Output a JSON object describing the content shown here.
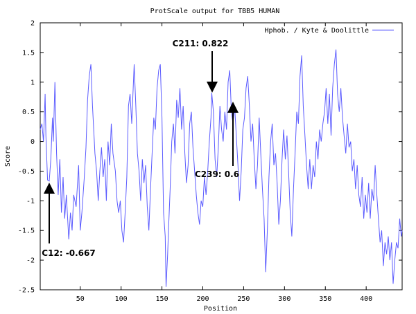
{
  "chart_data": {
    "type": "line",
    "title": "ProtScale output for TBB5 HUMAN",
    "xlabel": "Position",
    "ylabel": "Score",
    "xlim": [
      1,
      444
    ],
    "ylim": [
      -2.5,
      2
    ],
    "xticks": [
      50,
      100,
      150,
      200,
      250,
      300,
      350,
      400
    ],
    "yticks": [
      -2.5,
      -2,
      -1.5,
      -1,
      -0.5,
      0,
      0.5,
      1,
      1.5,
      2
    ],
    "ytick_labels": [
      "-2.5",
      "-2",
      "-1.5",
      "-1",
      "-0.5",
      "0",
      "0.5",
      "1",
      "1.5",
      "2"
    ],
    "grid": false,
    "legend_position": "top-right",
    "series": [
      {
        "name": "Hphob. / Kyte & Doolittle",
        "color": "#5b5bff",
        "anchors": [
          [
            1,
            0.2
          ],
          [
            3,
            0.3
          ],
          [
            5,
            0.0
          ],
          [
            7,
            0.8
          ],
          [
            8,
            0.1
          ],
          [
            10,
            -0.65
          ],
          [
            12,
            -0.667
          ],
          [
            14,
            -0.3
          ],
          [
            16,
            0.4
          ],
          [
            17,
            0.0
          ],
          [
            19,
            1.0
          ],
          [
            21,
            -0.2
          ],
          [
            23,
            -0.9
          ],
          [
            25,
            -0.3
          ],
          [
            27,
            -1.2
          ],
          [
            29,
            -0.6
          ],
          [
            31,
            -1.3
          ],
          [
            33,
            -0.9
          ],
          [
            36,
            -1.65
          ],
          [
            38,
            -1.2
          ],
          [
            40,
            -1.5
          ],
          [
            42,
            -0.9
          ],
          [
            45,
            -1.1
          ],
          [
            48,
            -0.4
          ],
          [
            50,
            -1.5
          ],
          [
            52,
            -1.2
          ],
          [
            55,
            -0.6
          ],
          [
            57,
            -0.1
          ],
          [
            59,
            0.7
          ],
          [
            61,
            1.1
          ],
          [
            63,
            1.3
          ],
          [
            65,
            0.6
          ],
          [
            68,
            -0.2
          ],
          [
            70,
            -0.5
          ],
          [
            72,
            -1.0
          ],
          [
            74,
            -0.5
          ],
          [
            76,
            -0.1
          ],
          [
            78,
            -0.6
          ],
          [
            80,
            -0.3
          ],
          [
            82,
            -1.0
          ],
          [
            84,
            0.0
          ],
          [
            86,
            -0.4
          ],
          [
            88,
            0.3
          ],
          [
            90,
            -0.2
          ],
          [
            93,
            -0.5
          ],
          [
            95,
            -1.0
          ],
          [
            97,
            -1.2
          ],
          [
            99,
            -1.0
          ],
          [
            101,
            -1.5
          ],
          [
            103,
            -1.7
          ],
          [
            105,
            -1.2
          ],
          [
            107,
            -0.6
          ],
          [
            109,
            0.6
          ],
          [
            111,
            0.8
          ],
          [
            113,
            0.3
          ],
          [
            116,
            1.3
          ],
          [
            118,
            0.6
          ],
          [
            120,
            -0.2
          ],
          [
            122,
            -0.5
          ],
          [
            124,
            -1.0
          ],
          [
            126,
            -0.3
          ],
          [
            128,
            -0.7
          ],
          [
            130,
            -0.4
          ],
          [
            132,
            -1.1
          ],
          [
            134,
            -1.5
          ],
          [
            136,
            -0.8
          ],
          [
            138,
            -0.2
          ],
          [
            140,
            0.4
          ],
          [
            142,
            0.2
          ],
          [
            144,
            0.9
          ],
          [
            146,
            1.2
          ],
          [
            148,
            1.3
          ],
          [
            150,
            0.4
          ],
          [
            152,
            -1.2
          ],
          [
            154,
            -1.6
          ],
          [
            155,
            -2.45
          ],
          [
            157,
            -1.9
          ],
          [
            158,
            -1.5
          ],
          [
            160,
            -0.8
          ],
          [
            162,
            0.0
          ],
          [
            164,
            0.3
          ],
          [
            166,
            -0.2
          ],
          [
            168,
            0.7
          ],
          [
            170,
            0.4
          ],
          [
            172,
            0.9
          ],
          [
            174,
            0.2
          ],
          [
            176,
            0.6
          ],
          [
            178,
            -0.2
          ],
          [
            180,
            -0.7
          ],
          [
            182,
            -0.4
          ],
          [
            184,
            0.3
          ],
          [
            186,
            0.5
          ],
          [
            188,
            -0.1
          ],
          [
            190,
            -0.5
          ],
          [
            192,
            -0.9
          ],
          [
            194,
            -1.2
          ],
          [
            196,
            -1.4
          ],
          [
            198,
            -1.0
          ],
          [
            200,
            -1.1
          ],
          [
            202,
            -0.6
          ],
          [
            204,
            -0.9
          ],
          [
            206,
            -0.5
          ],
          [
            208,
            0.0
          ],
          [
            210,
            0.4
          ],
          [
            211,
            0.822
          ],
          [
            213,
            0.5
          ],
          [
            215,
            -0.3
          ],
          [
            217,
            -0.6
          ],
          [
            219,
            -0.1
          ],
          [
            221,
            0.6
          ],
          [
            223,
            0.2
          ],
          [
            225,
            0.0
          ],
          [
            227,
            0.5
          ],
          [
            229,
            0.2
          ],
          [
            231,
            1.0
          ],
          [
            233,
            1.2
          ],
          [
            235,
            0.5
          ],
          [
            237,
            0.3
          ],
          [
            239,
            0.6
          ],
          [
            241,
            0.1
          ],
          [
            243,
            -0.4
          ],
          [
            245,
            -1.0
          ],
          [
            247,
            -0.5
          ],
          [
            249,
            0.2
          ],
          [
            251,
            0.4
          ],
          [
            253,
            0.9
          ],
          [
            255,
            1.1
          ],
          [
            257,
            0.6
          ],
          [
            259,
            0.0
          ],
          [
            261,
            0.3
          ],
          [
            263,
            -0.3
          ],
          [
            265,
            -0.8
          ],
          [
            267,
            -0.4
          ],
          [
            269,
            0.4
          ],
          [
            271,
            -0.2
          ],
          [
            273,
            -0.8
          ],
          [
            275,
            -1.3
          ],
          [
            277,
            -2.2
          ],
          [
            279,
            -1.5
          ],
          [
            281,
            -0.6
          ],
          [
            283,
            0.0
          ],
          [
            285,
            0.3
          ],
          [
            287,
            -0.4
          ],
          [
            289,
            -0.2
          ],
          [
            291,
            -0.7
          ],
          [
            293,
            -1.4
          ],
          [
            295,
            -1.0
          ],
          [
            297,
            -0.3
          ],
          [
            299,
            0.2
          ],
          [
            301,
            -0.3
          ],
          [
            303,
            0.1
          ],
          [
            305,
            -0.5
          ],
          [
            307,
            -1.2
          ],
          [
            309,
            -1.6
          ],
          [
            311,
            -0.8
          ],
          [
            313,
            -0.2
          ],
          [
            315,
            0.5
          ],
          [
            317,
            0.3
          ],
          [
            319,
            1.1
          ],
          [
            321,
            1.45
          ],
          [
            323,
            0.6
          ],
          [
            325,
            0.1
          ],
          [
            327,
            -0.4
          ],
          [
            329,
            -0.8
          ],
          [
            331,
            -0.3
          ],
          [
            333,
            -0.8
          ],
          [
            335,
            -0.4
          ],
          [
            337,
            -0.6
          ],
          [
            339,
            0.0
          ],
          [
            341,
            -0.3
          ],
          [
            343,
            0.2
          ],
          [
            345,
            0.0
          ],
          [
            347,
            0.3
          ],
          [
            349,
            0.5
          ],
          [
            351,
            0.9
          ],
          [
            353,
            0.3
          ],
          [
            355,
            0.8
          ],
          [
            357,
            0.1
          ],
          [
            359,
            0.9
          ],
          [
            361,
            1.3
          ],
          [
            363,
            1.55
          ],
          [
            365,
            0.8
          ],
          [
            367,
            0.5
          ],
          [
            369,
            0.9
          ],
          [
            371,
            0.4
          ],
          [
            373,
            0.1
          ],
          [
            375,
            -0.2
          ],
          [
            377,
            0.3
          ],
          [
            379,
            -0.1
          ],
          [
            381,
            0.0
          ],
          [
            383,
            -0.5
          ],
          [
            385,
            -0.3
          ],
          [
            387,
            -0.8
          ],
          [
            389,
            -0.4
          ],
          [
            391,
            -0.9
          ],
          [
            393,
            -1.1
          ],
          [
            395,
            -0.6
          ],
          [
            397,
            -1.3
          ],
          [
            399,
            -0.9
          ],
          [
            401,
            -1.2
          ],
          [
            403,
            -0.7
          ],
          [
            405,
            -1.3
          ],
          [
            407,
            -0.8
          ],
          [
            409,
            -1.0
          ],
          [
            411,
            -0.4
          ],
          [
            413,
            -0.9
          ],
          [
            415,
            -1.3
          ],
          [
            417,
            -1.7
          ],
          [
            419,
            -1.5
          ],
          [
            421,
            -2.1
          ],
          [
            423,
            -1.7
          ],
          [
            425,
            -1.9
          ],
          [
            427,
            -1.6
          ],
          [
            429,
            -2.0
          ],
          [
            431,
            -1.7
          ],
          [
            433,
            -2.4
          ],
          [
            435,
            -2.0
          ],
          [
            437,
            -1.7
          ],
          [
            439,
            -1.8
          ],
          [
            441,
            -1.3
          ],
          [
            443,
            -1.6
          ],
          [
            444,
            -1.5
          ]
        ]
      }
    ],
    "annotations": [
      {
        "label": "C12: -0.667",
        "x": 12,
        "y": -0.667
      },
      {
        "label": "C211: 0.822",
        "x": 211,
        "y": 0.822
      },
      {
        "label": "C239: 0.6",
        "x": 239,
        "y": 0.6
      }
    ]
  }
}
